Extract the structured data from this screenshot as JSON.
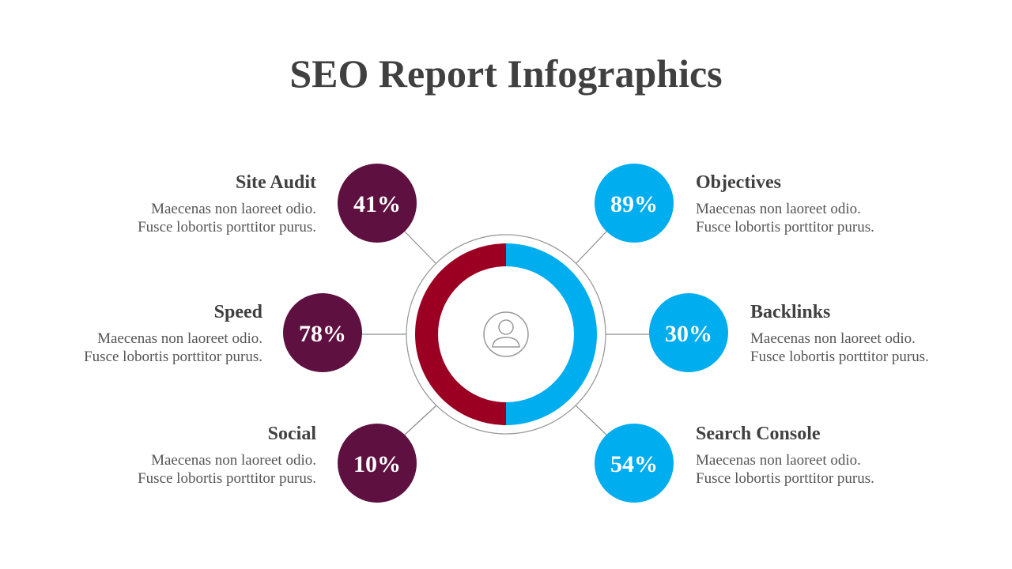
{
  "title": "SEO Report Infographics",
  "items": [
    {
      "label": "Site Audit",
      "value": "41%",
      "description": [
        "Maecenas non laoreet odio.",
        "Fusce lobortis porttitor purus."
      ]
    },
    {
      "label": "Speed",
      "value": "78%",
      "description": [
        "Maecenas non laoreet odio.",
        "Fusce lobortis porttitor purus."
      ]
    },
    {
      "label": "Social",
      "value": "10%",
      "description": [
        "Maecenas non laoreet odio.",
        "Fusce lobortis porttitor purus."
      ]
    },
    {
      "label": "Objectives",
      "value": "89%",
      "description": [
        "Maecenas non laoreet odio.",
        "Fusce lobortis porttitor purus."
      ]
    },
    {
      "label": "Backlinks",
      "value": "30%",
      "description": [
        "Maecenas non laoreet odio.",
        "Fusce lobortis porttitor purus."
      ]
    },
    {
      "label": "Search Console",
      "value": "54%",
      "description": [
        "Maecenas non laoreet odio.",
        "Fusce lobortis porttitor purus."
      ]
    }
  ]
}
